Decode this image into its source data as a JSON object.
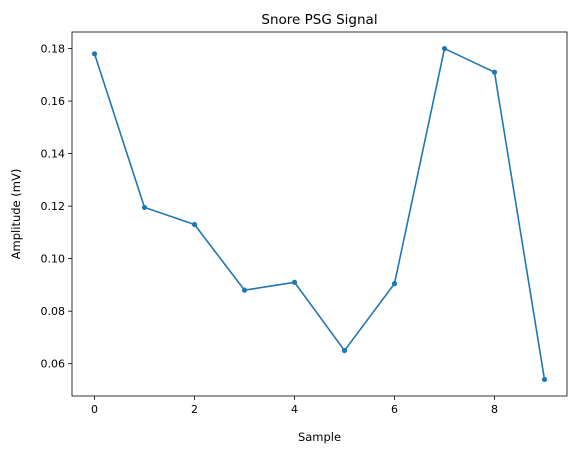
{
  "chart_data": {
    "type": "line",
    "title": "Snore PSG Signal",
    "xlabel": "Sample",
    "ylabel": "Amplitude (mV)",
    "x": [
      0,
      1,
      2,
      3,
      4,
      5,
      6,
      7,
      8,
      9
    ],
    "series": [
      {
        "values": [
          0.178,
          0.1195,
          0.113,
          0.088,
          0.091,
          0.065,
          0.0905,
          0.18,
          0.171,
          0.054
        ],
        "color": "#1f77b4"
      }
    ],
    "xlim": [
      -0.45,
      9.45
    ],
    "ylim": [
      0.0477,
      0.1863
    ],
    "xticks": [
      0,
      2,
      4,
      6,
      8
    ],
    "xtick_labels": [
      "0",
      "2",
      "4",
      "6",
      "8"
    ],
    "yticks": [
      0.06,
      0.08,
      0.1,
      0.12,
      0.14,
      0.16,
      0.18
    ],
    "ytick_labels": [
      "0.06",
      "0.08",
      "0.10",
      "0.12",
      "0.14",
      "0.16",
      "0.18"
    ],
    "grid": false,
    "marker": "circle"
  }
}
